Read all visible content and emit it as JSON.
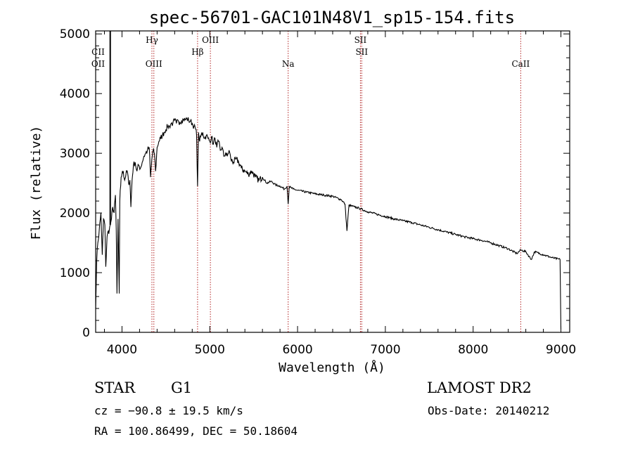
{
  "chart_data": {
    "type": "line",
    "title": "spec-56701-GAC101N48V1_sp15-154.fits",
    "xlabel": "Wavelength (Å)",
    "ylabel": "Flux (relative)",
    "xlim": [
      3700,
      9100
    ],
    "ylim": [
      0,
      5050
    ],
    "xticks": [
      4000,
      5000,
      6000,
      7000,
      8000,
      9000
    ],
    "xtick_labels": [
      "4000",
      "5000",
      "6000",
      "7000",
      "8000",
      "9000"
    ],
    "yticks": [
      0,
      1000,
      2000,
      3000,
      4000,
      5000
    ],
    "ytick_labels": [
      "0",
      "1000",
      "2000",
      "3000",
      "4000",
      "5000"
    ],
    "grid": false,
    "line_color": "#000000",
    "marker_color": "#b22222",
    "spectrum": {
      "x": [
        3700,
        3712,
        3725,
        3740,
        3760,
        3775,
        3790,
        3805,
        3815,
        3830,
        3845,
        3855,
        3866,
        3880,
        3895,
        3910,
        3925,
        3935,
        3943,
        3955,
        3968,
        3975,
        3990,
        4000,
        4015,
        4030,
        4045,
        4060,
        4075,
        4090,
        4101,
        4115,
        4130,
        4150,
        4170,
        4190,
        4210,
        4230,
        4250,
        4270,
        4290,
        4310,
        4325,
        4340,
        4355,
        4370,
        4383,
        4400,
        4420,
        4440,
        4460,
        4480,
        4500,
        4520,
        4540,
        4560,
        4580,
        4600,
        4620,
        4640,
        4660,
        4680,
        4700,
        4720,
        4740,
        4760,
        4780,
        4800,
        4820,
        4840,
        4850,
        4861,
        4872,
        4885,
        4900,
        4920,
        4940,
        4960,
        4980,
        5000,
        5020,
        5040,
        5060,
        5080,
        5100,
        5120,
        5140,
        5160,
        5180,
        5200,
        5220,
        5240,
        5270,
        5300,
        5330,
        5360,
        5400,
        5440,
        5480,
        5520,
        5560,
        5600,
        5650,
        5700,
        5750,
        5800,
        5850,
        5880,
        5893,
        5905,
        5950,
        6000,
        6100,
        6200,
        6300,
        6400,
        6500,
        6540,
        6563,
        6585,
        6650,
        6700,
        6800,
        6900,
        7000,
        7100,
        7200,
        7300,
        7400,
        7500,
        7600,
        7700,
        7800,
        7900,
        8000,
        8100,
        8200,
        8300,
        8400,
        8498,
        8542,
        8600,
        8662,
        8700,
        8800,
        8900,
        8990,
        9000
      ],
      "y": [
        400,
        1200,
        1500,
        1700,
        2000,
        1300,
        1900,
        1800,
        1100,
        1600,
        1700,
        1700,
        1800,
        1900,
        2100,
        2000,
        2300,
        1700,
        650,
        1900,
        650,
        2200,
        2600,
        2650,
        2700,
        2550,
        2650,
        2700,
        2500,
        2550,
        2100,
        2550,
        2800,
        2850,
        2700,
        2800,
        2750,
        2850,
        2950,
        3000,
        3050,
        3100,
        2600,
        2900,
        3050,
        3000,
        2700,
        3100,
        3200,
        3250,
        3300,
        3350,
        3400,
        3450,
        3450,
        3500,
        3500,
        3550,
        3500,
        3550,
        3520,
        3550,
        3570,
        3560,
        3580,
        3550,
        3540,
        3500,
        3450,
        3400,
        3300,
        2450,
        3350,
        3200,
        3300,
        3350,
        3250,
        3300,
        3250,
        3200,
        3280,
        3150,
        3250,
        3100,
        3200,
        3050,
        3100,
        2950,
        3000,
        2950,
        3050,
        2900,
        2850,
        2900,
        2850,
        2750,
        2700,
        2650,
        2700,
        2600,
        2550,
        2600,
        2500,
        2530,
        2470,
        2450,
        2400,
        2450,
        2150,
        2440,
        2400,
        2380,
        2350,
        2320,
        2300,
        2280,
        2220,
        2150,
        1700,
        2130,
        2100,
        2080,
        2020,
        1980,
        1940,
        1900,
        1870,
        1840,
        1800,
        1760,
        1720,
        1680,
        1640,
        1600,
        1570,
        1540,
        1500,
        1450,
        1400,
        1320,
        1380,
        1350,
        1220,
        1350,
        1300,
        1250,
        1220,
        50
      ]
    },
    "line_markers": [
      {
        "label": "CII",
        "x": 3728,
        "row": 1
      },
      {
        "label": "OII",
        "x": 3728,
        "row": 2
      },
      {
        "label": "Hγ",
        "x": 4341,
        "row": 0
      },
      {
        "label": "OIII",
        "x": 4363,
        "row": 2
      },
      {
        "label": "Hβ",
        "x": 4861,
        "row": 1
      },
      {
        "label": "OIII",
        "x": 5007,
        "row": 0
      },
      {
        "label": "Na",
        "x": 5893,
        "row": 2
      },
      {
        "label": "SII",
        "x": 6716,
        "row": 0
      },
      {
        "label": "SII",
        "x": 6731,
        "row": 1
      },
      {
        "label": "CaII",
        "x": 8542,
        "row": 2
      }
    ],
    "marker_lines": [
      4341,
      4363,
      4861,
      5007,
      5893,
      6716,
      6731,
      8542
    ],
    "strong_spike_x": 3866
  },
  "info": {
    "class": "STAR",
    "subclass": "G1",
    "survey": "LAMOST DR2",
    "cz": "cz = −90.8 ± 19.5 km/s",
    "obs_date": "Obs-Date: 20140212",
    "coords": "RA = 100.86499, DEC =  50.18604"
  }
}
